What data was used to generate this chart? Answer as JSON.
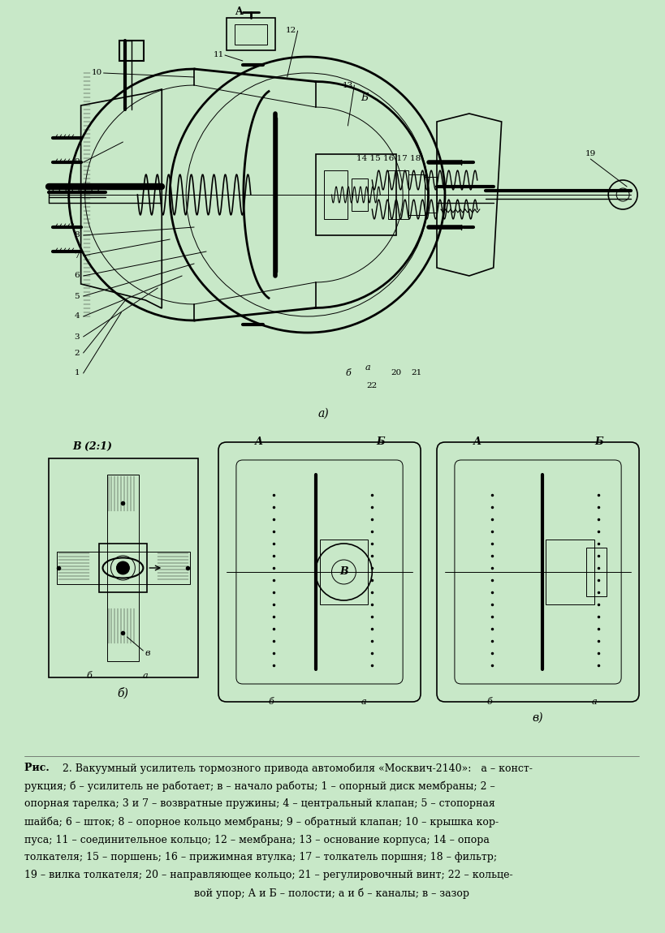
{
  "background_color": "#c8e8c8",
  "fig_width": 8.2,
  "fig_height": 11.5,
  "dpi": 100,
  "title_text": "Рис. 2. Вакуумный усилитель тормозного привода автомобиля «Москвич-2140»:",
  "caption_line1": "Рис. 2. Вакуумный усилитель тормозного привода автомобиля «Москвич-2140»:   а – конст-",
  "caption_line2": "рукция; б – усилитель не работает; в – начало работы; 1 – опорный диск мембраны; 2 –",
  "caption_line3": "опорная тарелка; 3 и 7 – возвратные пружины; 4 – центральный клапан; 5 – стопорная",
  "caption_line4": "шайба; 6 – шток; 8 – опорное кольцо мембраны; 9 – обратный клапан; 10 – крышка кор-",
  "caption_line5": "пуса; 11 – соединительное кольцо; 12 – мембрана; 13 – основание корпуса; 14 – опора",
  "caption_line6": "толкателя; 15 – поршень; 16 – прижимная втулка; 17 – толкатель поршня; 18 – фильтр;",
  "caption_line7": "19 – вилка толкателя; 20 – направляющее кольцо; 21 – регулировочный винт; 22 – кольце-",
  "caption_line8": "вой упор; А и Б – полости; а и б – каналы; в – зазор"
}
